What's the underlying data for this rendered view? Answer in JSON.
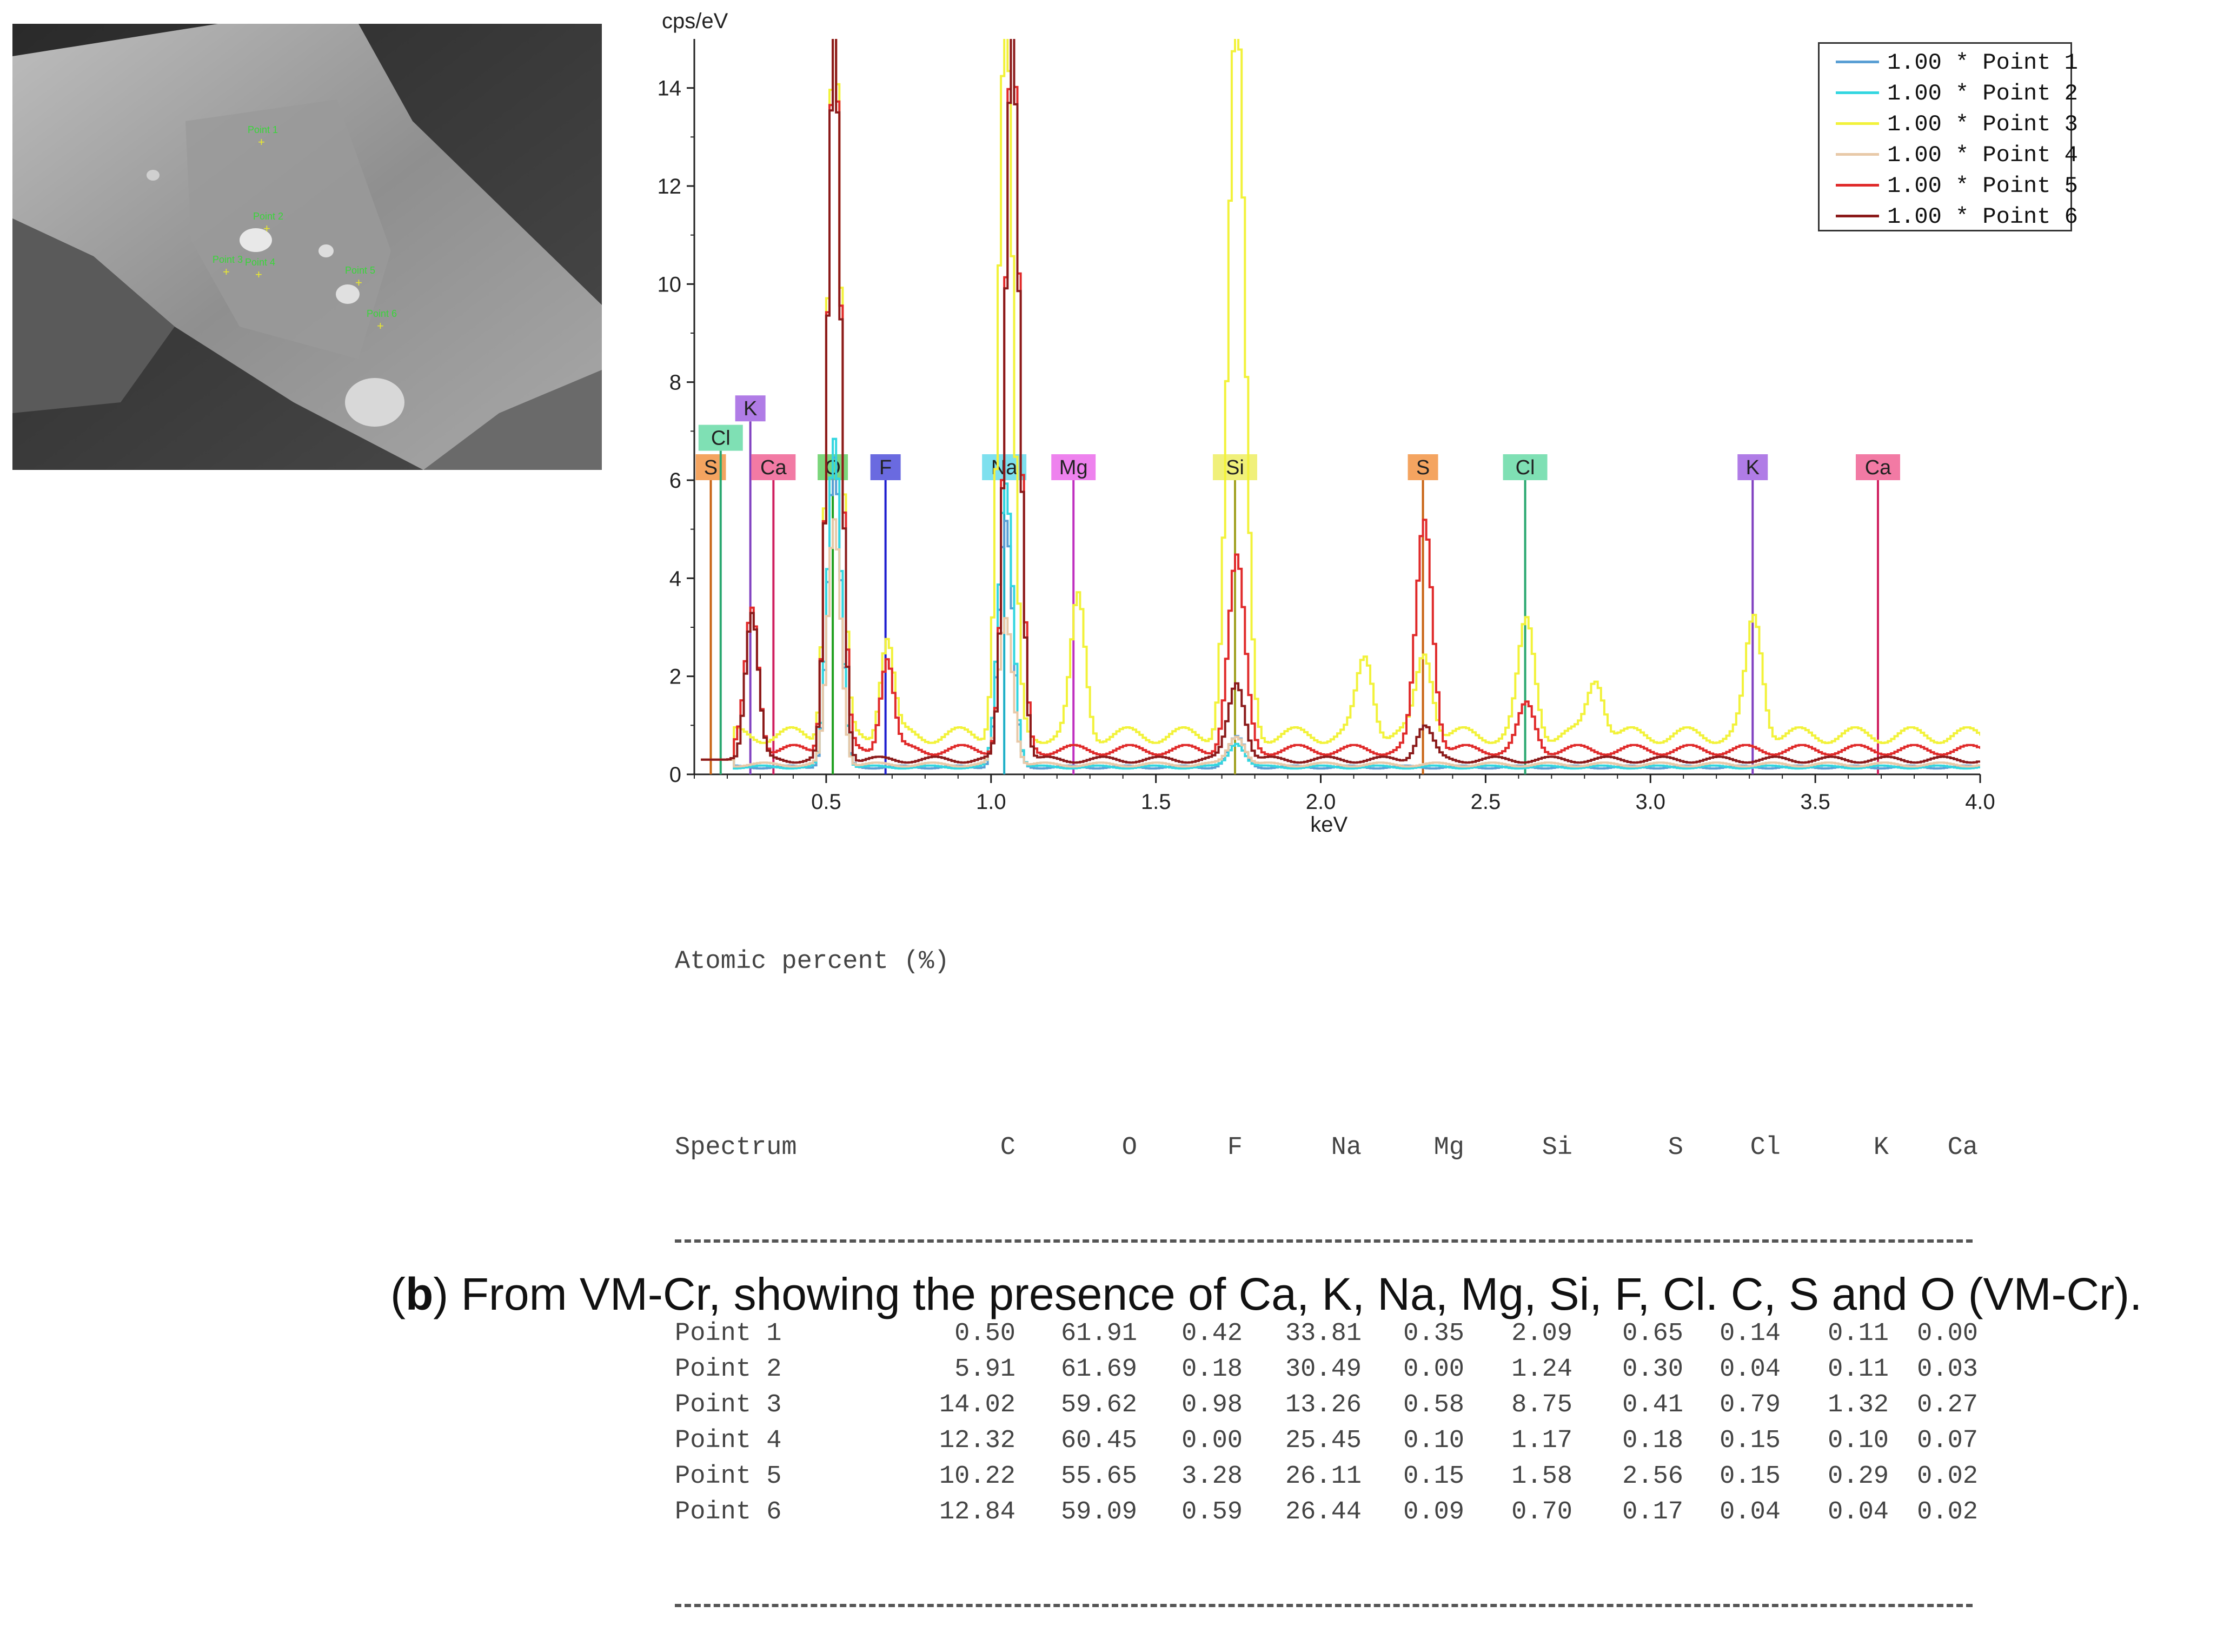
{
  "sem_image": {
    "point_labels": [
      "Point 1",
      "Point 2",
      "Point 3",
      "Point 4",
      "Point 5",
      "Point 6"
    ]
  },
  "chart_data": {
    "type": "line",
    "ylabel": "cps/eV",
    "xlabel": "keV",
    "xlim": [
      0.1,
      4.0
    ],
    "ylim": [
      0,
      15
    ],
    "x_ticks": [
      "0.5",
      "1.0",
      "1.5",
      "2.0",
      "2.5",
      "3.0",
      "3.5",
      "4.0"
    ],
    "y_ticks": [
      "0",
      "2",
      "4",
      "6",
      "8",
      "10",
      "12",
      "14"
    ],
    "legend_position": "top-right",
    "series": [
      {
        "name": "1.00 * Point 1",
        "color": "#5a9fd4",
        "peaks": [
          [
            0.52,
            6.3
          ],
          [
            1.04,
            5.0
          ],
          [
            1.74,
            0.6
          ]
        ],
        "baseline": 0.15
      },
      {
        "name": "1.00 * Point 2",
        "color": "#33d6e0",
        "peaks": [
          [
            0.52,
            6.7
          ],
          [
            1.04,
            5.8
          ],
          [
            1.74,
            0.5
          ]
        ],
        "baseline": 0.15
      },
      {
        "name": "1.00 * Point 3",
        "color": "#f2f23a",
        "peaks": [
          [
            0.52,
            15
          ],
          [
            1.04,
            15
          ],
          [
            1.74,
            15
          ],
          [
            2.13,
            1.6
          ],
          [
            2.31,
            1.7
          ],
          [
            2.62,
            2.3
          ],
          [
            2.83,
            1.2
          ],
          [
            3.31,
            2.4
          ],
          [
            1.26,
            2.8
          ],
          [
            0.68,
            2.0
          ]
        ],
        "baseline": 0.8
      },
      {
        "name": "1.00 * Point 4",
        "color": "#e8c9a8",
        "peaks": [
          [
            0.52,
            5.0
          ],
          [
            1.04,
            3.0
          ],
          [
            1.74,
            0.6
          ]
        ],
        "baseline": 0.2
      },
      {
        "name": "1.00 * Point 5",
        "color": "#e02a2a",
        "peaks": [
          [
            0.52,
            15
          ],
          [
            1.06,
            15
          ],
          [
            1.74,
            3.9
          ],
          [
            2.31,
            4.7
          ],
          [
            2.62,
            0.9
          ],
          [
            0.68,
            1.9
          ],
          [
            0.27,
            2.9
          ]
        ],
        "baseline": 0.5
      },
      {
        "name": "1.00 * Point 6",
        "color": "#8b1a1a",
        "peaks": [
          [
            0.52,
            15
          ],
          [
            1.06,
            15
          ],
          [
            1.74,
            1.6
          ],
          [
            2.31,
            0.7
          ],
          [
            0.27,
            3.0
          ]
        ],
        "baseline": 0.3
      }
    ],
    "element_markers": [
      {
        "label": "S",
        "x": 0.15,
        "color": "#f4a460",
        "line": "#c86414",
        "row": 0
      },
      {
        "label": "Cl",
        "x": 0.18,
        "color": "#7fe0b4",
        "line": "#2aa870",
        "row": 1
      },
      {
        "label": "K",
        "x": 0.27,
        "color": "#b07ce6",
        "line": "#8040c0",
        "row": 2
      },
      {
        "label": "Ca",
        "x": 0.34,
        "color": "#f27aa4",
        "line": "#d02060",
        "row": 0
      },
      {
        "label": "O",
        "x": 0.52,
        "color": "#7cd67c",
        "line": "#20a020",
        "row": 0
      },
      {
        "label": "F",
        "x": 0.68,
        "color": "#6a6ae0",
        "line": "#2020d0",
        "row": 0
      },
      {
        "label": "Na",
        "x": 1.04,
        "color": "#7ee0ee",
        "line": "#20b0c8",
        "row": 0
      },
      {
        "label": "Mg",
        "x": 1.25,
        "color": "#ee82ee",
        "line": "#c030c0",
        "row": 0
      },
      {
        "label": "Si",
        "x": 1.74,
        "color": "#f0f07a",
        "line": "#a0a020",
        "row": 0
      },
      {
        "label": "S",
        "x": 2.31,
        "color": "#f4a460",
        "line": "#c86414",
        "row": 0
      },
      {
        "label": "Cl",
        "x": 2.62,
        "color": "#7fe0b4",
        "line": "#2aa870",
        "row": 0
      },
      {
        "label": "K",
        "x": 3.31,
        "color": "#b07ce6",
        "line": "#8040c0",
        "row": 0
      },
      {
        "label": "Ca",
        "x": 3.69,
        "color": "#f27aa4",
        "line": "#d02060",
        "row": 0
      }
    ]
  },
  "table": {
    "title": "Atomic percent (%)",
    "columns": [
      "Spectrum",
      "C",
      "O",
      "F",
      "Na",
      "Mg",
      "Si",
      "S",
      "Cl",
      "K",
      "Ca"
    ],
    "rows": [
      [
        "Point 1",
        "0.50",
        "61.91",
        "0.42",
        "33.81",
        "0.35",
        "2.09",
        "0.65",
        "0.14",
        "0.11",
        "0.00"
      ],
      [
        "Point 2",
        "5.91",
        "61.69",
        "0.18",
        "30.49",
        "0.00",
        "1.24",
        "0.30",
        "0.04",
        "0.11",
        "0.03"
      ],
      [
        "Point 3",
        "14.02",
        "59.62",
        "0.98",
        "13.26",
        "0.58",
        "8.75",
        "0.41",
        "0.79",
        "1.32",
        "0.27"
      ],
      [
        "Point 4",
        "12.32",
        "60.45",
        "0.00",
        "25.45",
        "0.10",
        "1.17",
        "0.18",
        "0.15",
        "0.10",
        "0.07"
      ],
      [
        "Point 5",
        "10.22",
        "55.65",
        "3.28",
        "26.11",
        "0.15",
        "1.58",
        "2.56",
        "0.15",
        "0.29",
        "0.02"
      ],
      [
        "Point 6",
        "12.84",
        "59.09",
        "0.59",
        "26.44",
        "0.09",
        "0.70",
        "0.17",
        "0.04",
        "0.04",
        "0.02"
      ]
    ]
  },
  "caption": {
    "bold": "b",
    "text": ") From VM-Cr, showing the presence of Ca, K, Na, Mg, Si, F, Cl. C, S and O (VM-Cr).",
    "open": "("
  }
}
